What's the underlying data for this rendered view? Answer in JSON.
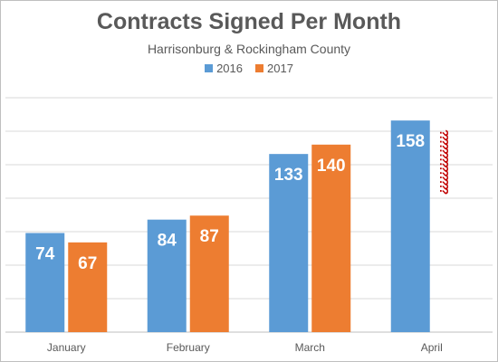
{
  "chart_data": {
    "type": "bar",
    "title": "Contracts Signed Per Month",
    "subtitle": "Harrisonburg & Rockingham County",
    "categories": [
      "January",
      "February",
      "March",
      "April"
    ],
    "series": [
      {
        "name": "2016",
        "color": "#5b9bd5",
        "values": [
          74,
          84,
          133,
          158
        ]
      },
      {
        "name": "2017",
        "color": "#ed7d31",
        "values": [
          67,
          87,
          140,
          null
        ]
      }
    ],
    "pending_marker": {
      "category": "April",
      "series": "2017",
      "text": "??????????????",
      "color": "#c00000"
    },
    "ylim": [
      0,
      175
    ],
    "grid": true,
    "legend": "top-center",
    "xlabel": "",
    "ylabel": ""
  }
}
